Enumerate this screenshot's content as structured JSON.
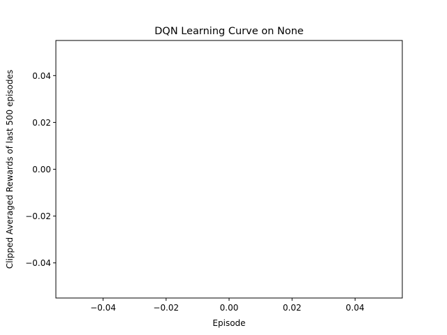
{
  "chart_data": {
    "type": "line",
    "title": "DQN Learning Curve on None",
    "xlabel": "Episode",
    "ylabel": "Clipped Averaged Rewards of last 500 episodes",
    "xlim": [
      -0.055,
      0.055
    ],
    "ylim": [
      -0.055,
      0.055
    ],
    "x_ticks": [
      -0.04,
      -0.02,
      0.0,
      0.02,
      0.04
    ],
    "x_tick_labels": [
      "−0.04",
      "−0.02",
      "0.00",
      "0.02",
      "0.04"
    ],
    "y_ticks": [
      -0.04,
      -0.02,
      0.0,
      0.02,
      0.04
    ],
    "y_tick_labels": [
      "−0.04",
      "−0.02",
      "0.00",
      "0.02",
      "0.04"
    ],
    "grid": false,
    "series": [
      {
        "x": [],
        "y": []
      }
    ]
  }
}
